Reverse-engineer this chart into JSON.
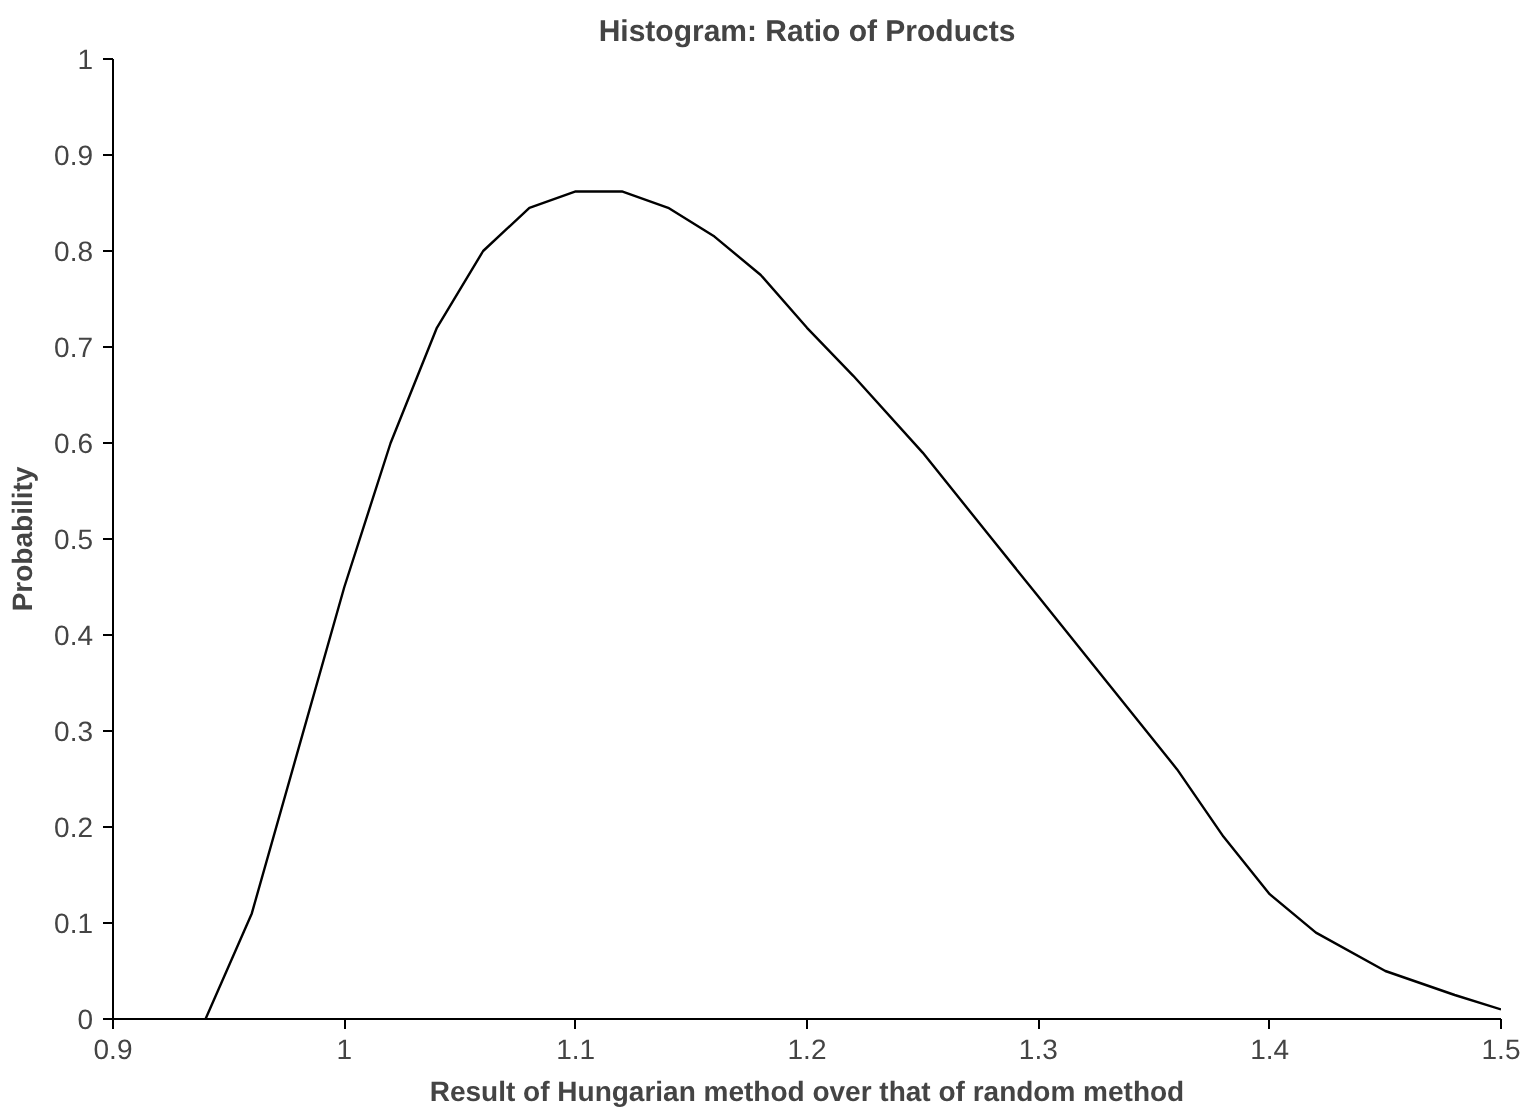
{
  "chart_data": {
    "type": "line",
    "title": "Histogram: Ratio of Products",
    "xlabel": "Result of Hungarian method over that of random method",
    "ylabel": "Probability",
    "x": [
      0.94,
      0.96,
      0.98,
      1.0,
      1.02,
      1.04,
      1.06,
      1.08,
      1.1,
      1.12,
      1.14,
      1.16,
      1.18,
      1.2,
      1.22,
      1.25,
      1.28,
      1.3,
      1.33,
      1.36,
      1.38,
      1.4,
      1.42,
      1.45,
      1.48,
      1.5
    ],
    "series": [
      {
        "color": "#000000",
        "values": [
          0,
          0.11,
          0.28,
          0.45,
          0.6,
          0.72,
          0.8,
          0.845,
          0.862,
          0.862,
          0.845,
          0.815,
          0.775,
          0.72,
          0.67,
          0.59,
          0.5,
          0.44,
          0.35,
          0.26,
          0.19,
          0.13,
          0.09,
          0.05,
          0.025,
          0.01
        ]
      }
    ],
    "xlim": [
      0.9,
      1.5
    ],
    "ylim": [
      0,
      1
    ],
    "xticks": [
      0.9,
      1,
      1.1,
      1.2,
      1.3,
      1.4,
      1.5
    ],
    "yticks": [
      0,
      0.1,
      0.2,
      0.3,
      0.4,
      0.5,
      0.6,
      0.7,
      0.8,
      0.9,
      1
    ],
    "grid": false,
    "marker": "none",
    "line_style": "solid"
  }
}
